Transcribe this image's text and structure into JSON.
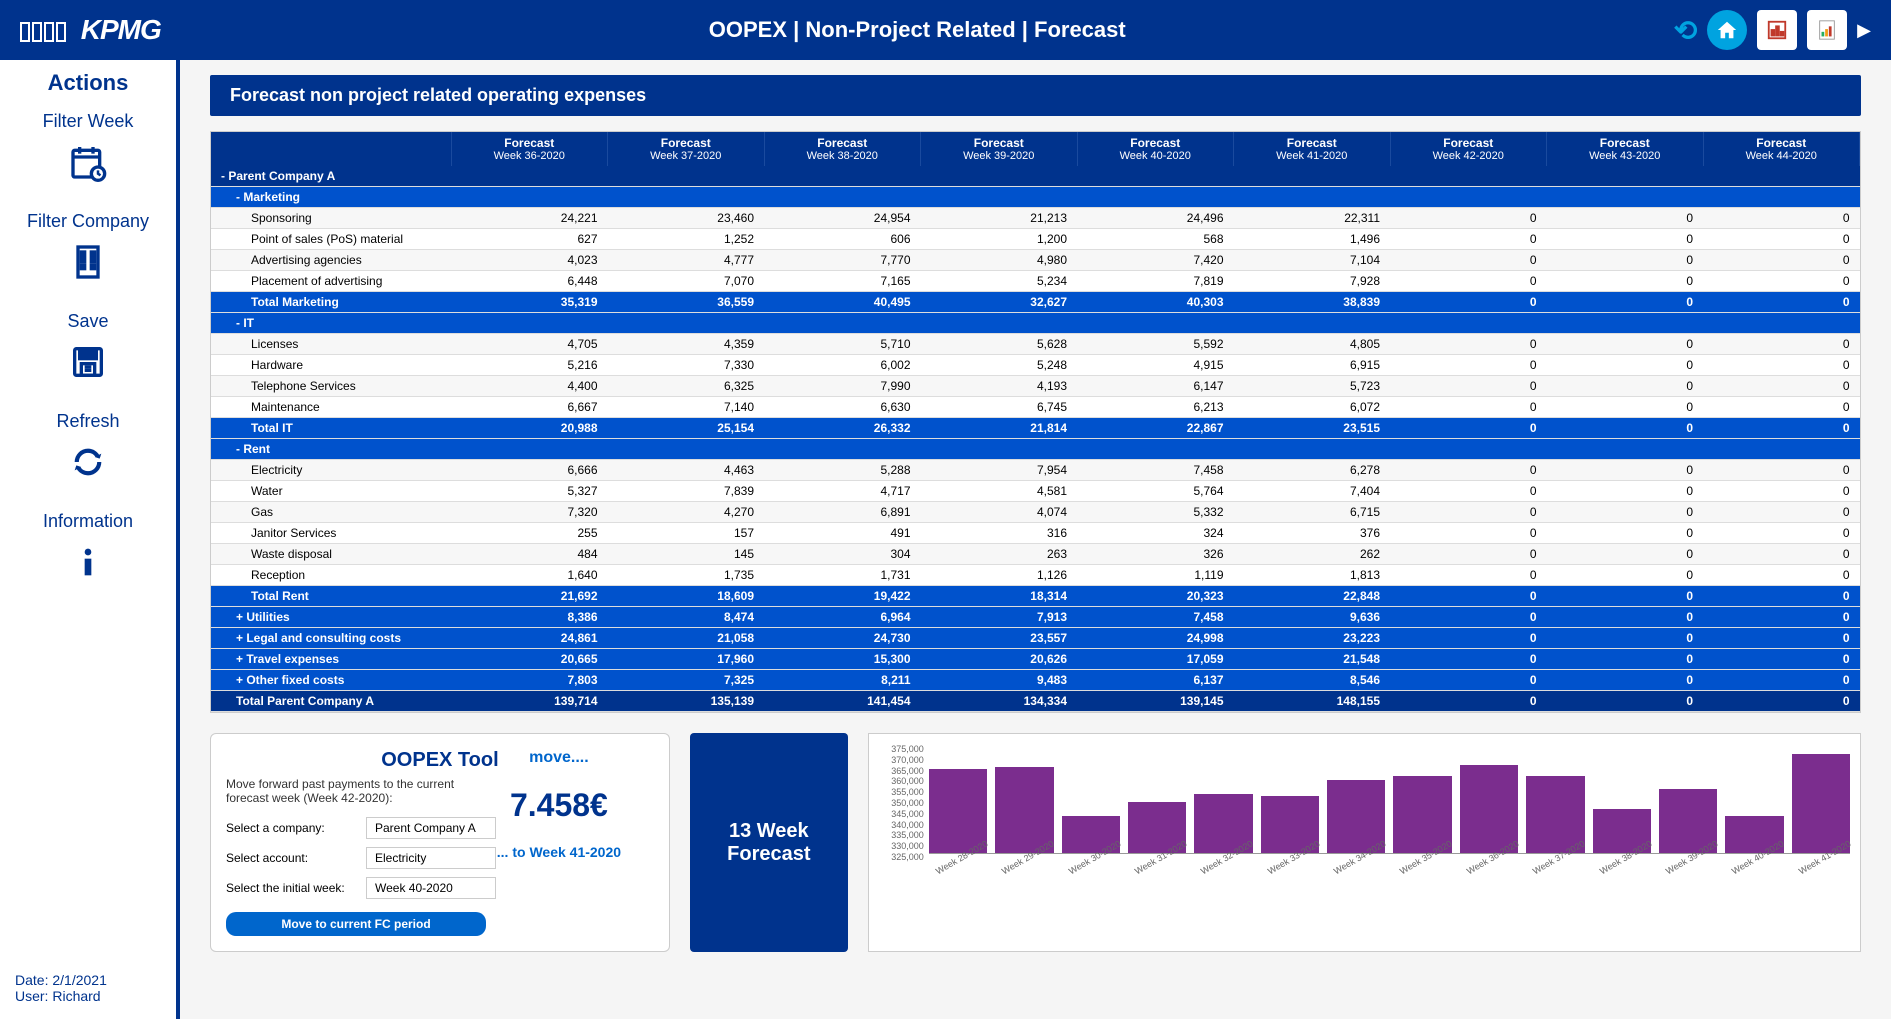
{
  "header": {
    "logo": "KPMG",
    "title": "OOPEX | Non-Project Related | Forecast"
  },
  "sidebar": {
    "title": "Actions",
    "items": [
      {
        "label": "Filter Week",
        "icon": "calendar"
      },
      {
        "label": "Filter Company",
        "icon": "building"
      },
      {
        "label": "Save",
        "icon": "save"
      },
      {
        "label": "Refresh",
        "icon": "refresh"
      },
      {
        "label": "Information",
        "icon": "info"
      }
    ],
    "footer": {
      "date_label": "Date:",
      "date": "2/1/2021",
      "user_label": "User:",
      "user": "Richard"
    }
  },
  "panel": {
    "title": "Forecast non project related operating expenses"
  },
  "table": {
    "columns": [
      {
        "h1": "Forecast",
        "h2": "Week 36-2020"
      },
      {
        "h1": "Forecast",
        "h2": "Week 37-2020"
      },
      {
        "h1": "Forecast",
        "h2": "Week 38-2020"
      },
      {
        "h1": "Forecast",
        "h2": "Week 39-2020"
      },
      {
        "h1": "Forecast",
        "h2": "Week 40-2020"
      },
      {
        "h1": "Forecast",
        "h2": "Week 41-2020"
      },
      {
        "h1": "Forecast",
        "h2": "Week 42-2020"
      },
      {
        "h1": "Forecast",
        "h2": "Week 43-2020"
      },
      {
        "h1": "Forecast",
        "h2": "Week 44-2020"
      }
    ],
    "rows": [
      {
        "type": "cat-header",
        "label": "- Parent Company A",
        "vals": [
          "",
          "",
          "",
          "",
          "",
          "",
          "",
          "",
          ""
        ]
      },
      {
        "type": "section",
        "label": "- Marketing",
        "vals": [
          "",
          "",
          "",
          "",
          "",
          "",
          "",
          "",
          ""
        ],
        "indent": 1
      },
      {
        "type": "detail",
        "label": "Sponsoring",
        "vals": [
          "24,221",
          "23,460",
          "24,954",
          "21,213",
          "24,496",
          "22,311",
          "0",
          "0",
          "0"
        ],
        "indent": 2
      },
      {
        "type": "detail",
        "label": "Point of sales (PoS) material",
        "vals": [
          "627",
          "1,252",
          "606",
          "1,200",
          "568",
          "1,496",
          "0",
          "0",
          "0"
        ],
        "indent": 2
      },
      {
        "type": "detail",
        "label": "Advertising agencies",
        "vals": [
          "4,023",
          "4,777",
          "7,770",
          "4,980",
          "7,420",
          "7,104",
          "0",
          "0",
          "0"
        ],
        "indent": 2
      },
      {
        "type": "detail",
        "label": "Placement of advertising",
        "vals": [
          "6,448",
          "7,070",
          "7,165",
          "5,234",
          "7,819",
          "7,928",
          "0",
          "0",
          "0"
        ],
        "indent": 2
      },
      {
        "type": "subtotal",
        "label": "Total Marketing",
        "vals": [
          "35,319",
          "36,559",
          "40,495",
          "32,627",
          "40,303",
          "38,839",
          "0",
          "0",
          "0"
        ],
        "indent": 2
      },
      {
        "type": "section",
        "label": "- IT",
        "vals": [
          "",
          "",
          "",
          "",
          "",
          "",
          "",
          "",
          ""
        ],
        "indent": 1
      },
      {
        "type": "detail",
        "label": "Licenses",
        "vals": [
          "4,705",
          "4,359",
          "5,710",
          "5,628",
          "5,592",
          "4,805",
          "0",
          "0",
          "0"
        ],
        "indent": 2
      },
      {
        "type": "detail",
        "label": "Hardware",
        "vals": [
          "5,216",
          "7,330",
          "6,002",
          "5,248",
          "4,915",
          "6,915",
          "0",
          "0",
          "0"
        ],
        "indent": 2
      },
      {
        "type": "detail",
        "label": "Telephone Services",
        "vals": [
          "4,400",
          "6,325",
          "7,990",
          "4,193",
          "6,147",
          "5,723",
          "0",
          "0",
          "0"
        ],
        "indent": 2
      },
      {
        "type": "detail",
        "label": "Maintenance",
        "vals": [
          "6,667",
          "7,140",
          "6,630",
          "6,745",
          "6,213",
          "6,072",
          "0",
          "0",
          "0"
        ],
        "indent": 2
      },
      {
        "type": "subtotal",
        "label": "Total IT",
        "vals": [
          "20,988",
          "25,154",
          "26,332",
          "21,814",
          "22,867",
          "23,515",
          "0",
          "0",
          "0"
        ],
        "indent": 2
      },
      {
        "type": "section",
        "label": "- Rent",
        "vals": [
          "",
          "",
          "",
          "",
          "",
          "",
          "",
          "",
          ""
        ],
        "indent": 1
      },
      {
        "type": "detail",
        "label": "Electricity",
        "vals": [
          "6,666",
          "4,463",
          "5,288",
          "7,954",
          "7,458",
          "6,278",
          "0",
          "0",
          "0"
        ],
        "indent": 2
      },
      {
        "type": "detail",
        "label": "Water",
        "vals": [
          "5,327",
          "7,839",
          "4,717",
          "4,581",
          "5,764",
          "7,404",
          "0",
          "0",
          "0"
        ],
        "indent": 2
      },
      {
        "type": "detail",
        "label": "Gas",
        "vals": [
          "7,320",
          "4,270",
          "6,891",
          "4,074",
          "5,332",
          "6,715",
          "0",
          "0",
          "0"
        ],
        "indent": 2
      },
      {
        "type": "detail",
        "label": "Janitor Services",
        "vals": [
          "255",
          "157",
          "491",
          "316",
          "324",
          "376",
          "0",
          "0",
          "0"
        ],
        "indent": 2
      },
      {
        "type": "detail",
        "label": "Waste disposal",
        "vals": [
          "484",
          "145",
          "304",
          "263",
          "326",
          "262",
          "0",
          "0",
          "0"
        ],
        "indent": 2
      },
      {
        "type": "detail",
        "label": "Reception",
        "vals": [
          "1,640",
          "1,735",
          "1,731",
          "1,126",
          "1,119",
          "1,813",
          "0",
          "0",
          "0"
        ],
        "indent": 2
      },
      {
        "type": "subtotal",
        "label": "Total Rent",
        "vals": [
          "21,692",
          "18,609",
          "19,422",
          "18,314",
          "20,323",
          "22,848",
          "0",
          "0",
          "0"
        ],
        "indent": 2
      },
      {
        "type": "collapsed",
        "label": "+ Utilities",
        "vals": [
          "8,386",
          "8,474",
          "6,964",
          "7,913",
          "7,458",
          "9,636",
          "0",
          "0",
          "0"
        ],
        "indent": 1
      },
      {
        "type": "collapsed",
        "label": "+ Legal and consulting costs",
        "vals": [
          "24,861",
          "21,058",
          "24,730",
          "23,557",
          "24,998",
          "23,223",
          "0",
          "0",
          "0"
        ],
        "indent": 1
      },
      {
        "type": "collapsed",
        "label": "+ Travel expenses",
        "vals": [
          "20,665",
          "17,960",
          "15,300",
          "20,626",
          "17,059",
          "21,548",
          "0",
          "0",
          "0"
        ],
        "indent": 1
      },
      {
        "type": "collapsed",
        "label": "+ Other fixed costs",
        "vals": [
          "7,803",
          "7,325",
          "8,211",
          "9,483",
          "6,137",
          "8,546",
          "0",
          "0",
          "0"
        ],
        "indent": 1
      },
      {
        "type": "grand",
        "label": "Total Parent Company A",
        "vals": [
          "139,714",
          "135,139",
          "141,454",
          "134,334",
          "139,145",
          "148,155",
          "0",
          "0",
          "0"
        ],
        "indent": 1
      }
    ]
  },
  "tool": {
    "title": "OOPEX Tool",
    "desc": "Move forward past payments to the current forecast week (Week 42-2020):",
    "rows": [
      {
        "label": "Select a company:",
        "value": "Parent Company A"
      },
      {
        "label": "Select account:",
        "value": "Electricity"
      },
      {
        "label": "Select the initial week:",
        "value": "Week 40-2020"
      }
    ],
    "button": "Move to current FC period",
    "move_label": "move....",
    "amount": "7.458€",
    "to_week": "... to Week 41-2020"
  },
  "forecast_label": {
    "line1": "13 Week",
    "line2": "Forecast"
  },
  "chart": {
    "type": "bar",
    "y_min": 325000,
    "y_max": 375000,
    "y_ticks": [
      "375,000",
      "370,000",
      "365,000",
      "360,000",
      "355,000",
      "350,000",
      "345,000",
      "340,000",
      "335,000",
      "330,000",
      "325,000"
    ],
    "bar_color": "#7b2d8e",
    "background": "#ffffff",
    "bars": [
      {
        "label": "Week 28-2020",
        "value": 363000
      },
      {
        "label": "Week 29-2020",
        "value": 364000
      },
      {
        "label": "Week 30-2020",
        "value": 342000
      },
      {
        "label": "Week 31-2020",
        "value": 348000
      },
      {
        "label": "Week 32-2020",
        "value": 352000
      },
      {
        "label": "Week 33-2020",
        "value": 351000
      },
      {
        "label": "Week 34-2020",
        "value": 358000
      },
      {
        "label": "Week 35-2020",
        "value": 360000
      },
      {
        "label": "Week 36-2020",
        "value": 365000
      },
      {
        "label": "Week 37-2020",
        "value": 360000
      },
      {
        "label": "Week 38-2020",
        "value": 345000
      },
      {
        "label": "Week 39-2020",
        "value": 354000
      },
      {
        "label": "Week 40-2020",
        "value": 342000
      },
      {
        "label": "Week 41-2020",
        "value": 370000
      }
    ]
  }
}
